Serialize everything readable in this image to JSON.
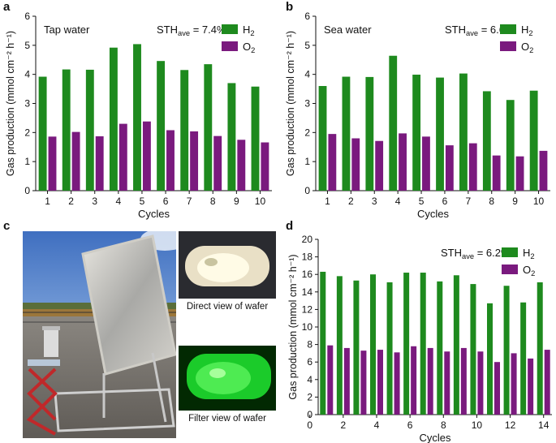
{
  "panel_letters": {
    "a": "a",
    "b": "b",
    "c": "c",
    "d": "d"
  },
  "colors": {
    "h2": "#1e8a1e",
    "o2": "#7a1a7e"
  },
  "photos": {
    "main": {
      "name": "rooftop-photoreactor-photo"
    },
    "direct": {
      "name": "direct-view-wafer-photo",
      "caption": "Direct view of wafer"
    },
    "filter": {
      "name": "filter-view-wafer-photo",
      "caption": "Filter view of wafer"
    }
  },
  "chart_data": [
    {
      "id": "a",
      "type": "bar",
      "panel_title": "Tap water",
      "sth_prefix": "STH",
      "sth_sub": "ave",
      "sth_suffix": " = 7.4%",
      "categories": [
        "1",
        "2",
        "3",
        "4",
        "5",
        "6",
        "7",
        "8",
        "9",
        "10"
      ],
      "series": [
        {
          "name": "H",
          "sub": "2",
          "color": "#1e8a1e",
          "values": [
            3.92,
            4.17,
            4.16,
            4.92,
            5.04,
            4.46,
            4.15,
            4.35,
            3.7,
            3.58
          ]
        },
        {
          "name": "O",
          "sub": "2",
          "color": "#7a1a7e",
          "values": [
            1.86,
            2.02,
            1.87,
            2.3,
            2.38,
            2.08,
            2.04,
            1.88,
            1.75,
            1.66
          ]
        }
      ],
      "xlabel": "Cycles",
      "ylabel": "Gas production (mmol cm⁻² h⁻¹)",
      "ylim": [
        0,
        6
      ],
      "yticks": [
        "0",
        "1",
        "2",
        "3",
        "4",
        "5",
        "6"
      ],
      "legend": "top-right"
    },
    {
      "id": "b",
      "type": "bar",
      "panel_title": "Sea water",
      "sth_prefix": "STH",
      "sth_sub": "ave",
      "sth_suffix": " = 6.6%",
      "categories": [
        "1",
        "2",
        "3",
        "4",
        "5",
        "6",
        "7",
        "8",
        "9",
        "10"
      ],
      "series": [
        {
          "name": "H",
          "sub": "2",
          "color": "#1e8a1e",
          "values": [
            3.6,
            3.92,
            3.91,
            4.64,
            3.99,
            3.89,
            4.03,
            3.42,
            3.12,
            3.44
          ]
        },
        {
          "name": "O",
          "sub": "2",
          "color": "#7a1a7e",
          "values": [
            1.95,
            1.8,
            1.71,
            1.97,
            1.86,
            1.56,
            1.63,
            1.21,
            1.18,
            1.37
          ]
        }
      ],
      "xlabel": "Cycles",
      "ylabel": "Gas production (mmol cm⁻² h⁻¹)",
      "ylim": [
        0,
        6
      ],
      "yticks": [
        "0",
        "1",
        "2",
        "3",
        "4",
        "5",
        "6"
      ],
      "legend": "top-right"
    },
    {
      "id": "d",
      "type": "bar",
      "panel_title": "",
      "sth_prefix": "STH",
      "sth_sub": "ave",
      "sth_suffix": " = 6.2%",
      "categories": [
        "1",
        "2",
        "3",
        "4",
        "5",
        "6",
        "7",
        "8",
        "9",
        "10",
        "11",
        "12",
        "13",
        "14"
      ],
      "xticks": [
        "0",
        "2",
        "4",
        "6",
        "8",
        "10",
        "12",
        "14"
      ],
      "series": [
        {
          "name": "H",
          "sub": "2",
          "color": "#1e8a1e",
          "values": [
            16.3,
            15.8,
            15.3,
            16.0,
            15.1,
            16.2,
            16.2,
            15.2,
            15.9,
            14.9,
            12.7,
            14.7,
            12.8,
            15.1
          ]
        },
        {
          "name": "O",
          "sub": "2",
          "color": "#7a1a7e",
          "values": [
            7.9,
            7.6,
            7.3,
            7.4,
            7.1,
            7.8,
            7.6,
            7.2,
            7.6,
            7.2,
            6.0,
            7.0,
            6.4,
            7.4
          ]
        }
      ],
      "xlabel": "Cycles",
      "ylabel": "Gas production (mmol cm⁻² h⁻¹)",
      "ylim": [
        0,
        20
      ],
      "yticks": [
        "0",
        "2",
        "4",
        "6",
        "8",
        "10",
        "12",
        "14",
        "16",
        "18",
        "20"
      ],
      "legend": "top-right"
    }
  ]
}
